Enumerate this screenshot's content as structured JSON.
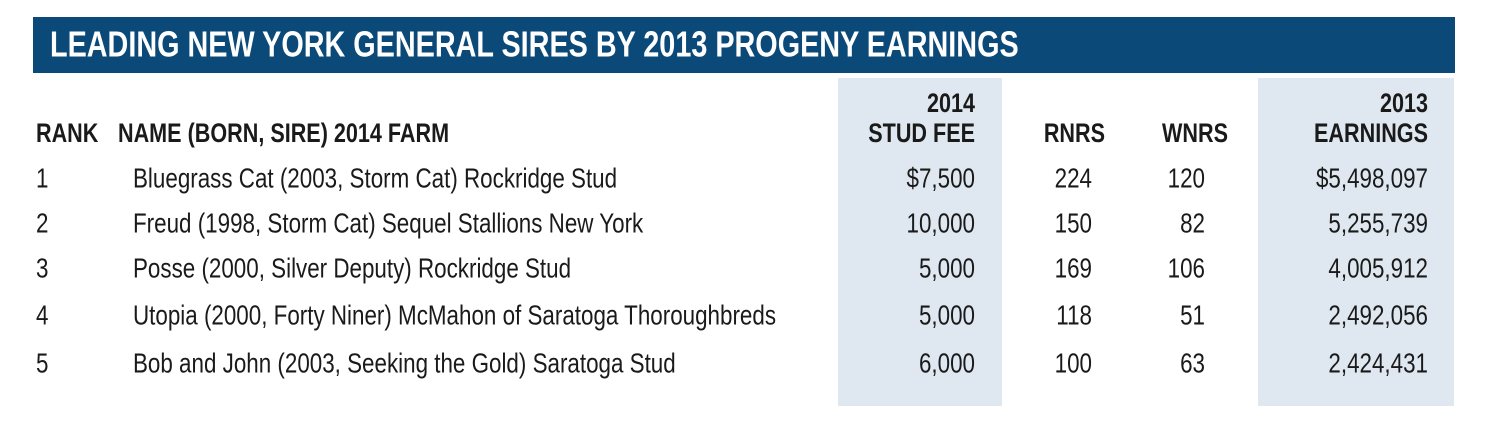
{
  "title": "LEADING NEW YORK GENERAL SIRES BY 2013 PROGENY EARNINGS",
  "table": {
    "headers": [
      [
        "RANK"
      ],
      [
        "NAME (BORN, SIRE) 2014 FARM"
      ],
      [
        "2014",
        "STUD FEE"
      ],
      [
        "RNRS"
      ],
      [
        "WNRS"
      ],
      [
        "2013",
        "EARNINGS"
      ]
    ],
    "rows": [
      [
        "1",
        "Bluegrass Cat (2003, Storm Cat) Rockridge Stud",
        "$7,500",
        "224",
        "120",
        "$5,498,097"
      ],
      [
        "2",
        "Freud (1998, Storm Cat) Sequel Stallions New York",
        "10,000",
        "150",
        "82",
        "5,255,739"
      ],
      [
        "3",
        "Posse (2000, Silver Deputy) Rockridge Stud",
        "5,000",
        "169",
        "106",
        "4,005,912"
      ],
      [
        "4",
        "Utopia (2000, Forty Niner) McMahon of Saratoga Thoroughbreds",
        "5,000",
        "118",
        "51",
        "2,492,056"
      ],
      [
        "5",
        "Bob and John (2003, Seeking the Gold) Saratoga Stud",
        "6,000",
        "100",
        "63",
        "2,424,431"
      ]
    ]
  }
}
